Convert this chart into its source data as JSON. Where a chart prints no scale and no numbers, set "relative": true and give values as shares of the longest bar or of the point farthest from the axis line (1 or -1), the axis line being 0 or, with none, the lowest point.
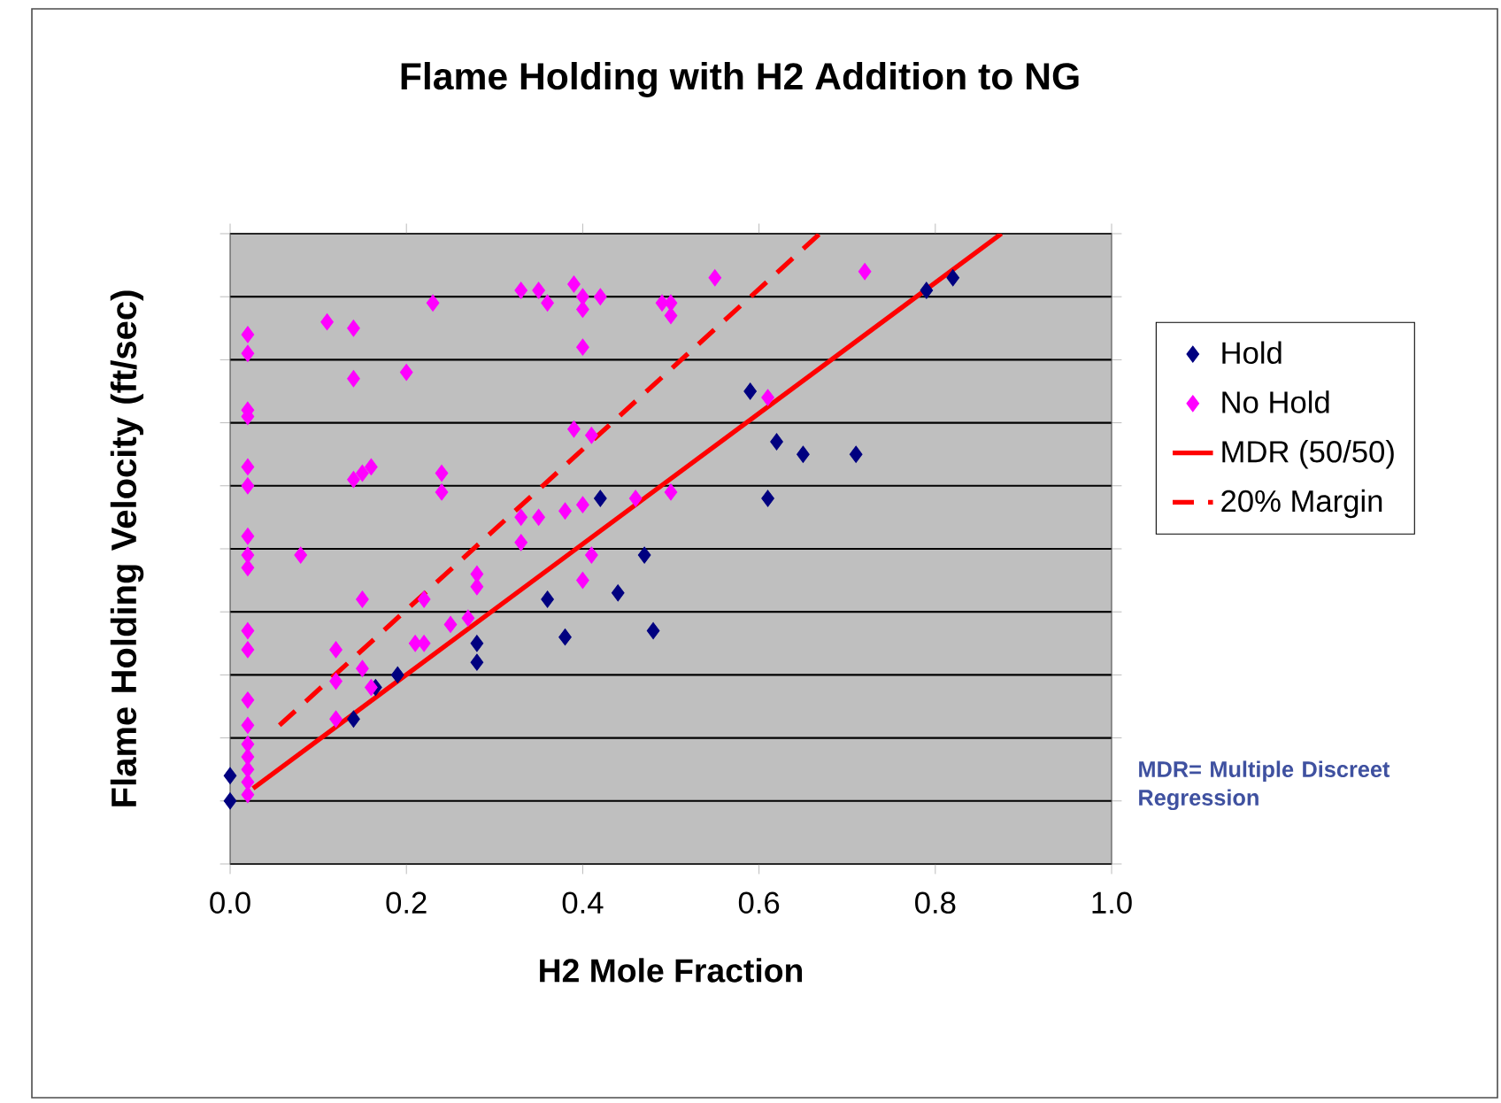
{
  "chart_data": {
    "type": "scatter",
    "title": "Flame Holding with H2 Addition to NG",
    "xlabel": "H2 Mole Fraction",
    "ylabel": "Flame Holding Velocity (ft/sec)",
    "relative": true,
    "xlim": [
      0,
      1
    ],
    "xticks": [
      {
        "value": 0,
        "label": "0.0"
      },
      {
        "value": 0.2,
        "label": "0.2"
      },
      {
        "value": 0.4,
        "label": "0.4"
      },
      {
        "value": 0.6,
        "label": "0.6"
      },
      {
        "value": 0.8,
        "label": "0.8"
      },
      {
        "value": 1,
        "label": "1.0"
      }
    ],
    "grid": "y",
    "legend": "right",
    "annotations": [
      "MDR= Multiple Discreet Regression"
    ],
    "series": [
      {
        "name": "Hold",
        "marker": "diamond",
        "color": "#000080",
        "x": [
          0,
          0,
          0.14,
          0.165,
          0.19,
          0.28,
          0.28,
          0.36,
          0.38,
          0.42,
          0.44,
          0.47,
          0.48,
          0.59,
          0.61,
          0.62,
          0.65,
          0.71,
          0.79,
          0.82
        ],
        "values": [
          0.14,
          0.1,
          0.23,
          0.28,
          0.3,
          0.35,
          0.32,
          0.42,
          0.36,
          0.58,
          0.43,
          0.49,
          0.37,
          0.75,
          0.58,
          0.67,
          0.65,
          0.65,
          0.91,
          0.93
        ]
      },
      {
        "name": "No Hold",
        "marker": "diamond",
        "color": "#ff00ff",
        "x": [
          0.02,
          0.02,
          0.02,
          0.02,
          0.02,
          0.02,
          0.02,
          0.02,
          0.02,
          0.02,
          0.02,
          0.02,
          0.02,
          0.02,
          0.02,
          0.02,
          0.02,
          0.02,
          0.08,
          0.11,
          0.14,
          0.14,
          0.14,
          0.15,
          0.16,
          0.15,
          0.12,
          0.12,
          0.12,
          0.15,
          0.16,
          0.2,
          0.23,
          0.22,
          0.21,
          0.22,
          0.25,
          0.27,
          0.24,
          0.24,
          0.28,
          0.28,
          0.33,
          0.35,
          0.36,
          0.33,
          0.33,
          0.35,
          0.38,
          0.39,
          0.4,
          0.4,
          0.42,
          0.4,
          0.39,
          0.41,
          0.4,
          0.41,
          0.4,
          0.46,
          0.49,
          0.5,
          0.5,
          0.55,
          0.61,
          0.5,
          0.72
        ],
        "values": [
          0.84,
          0.81,
          0.72,
          0.71,
          0.63,
          0.6,
          0.52,
          0.49,
          0.47,
          0.37,
          0.34,
          0.26,
          0.22,
          0.19,
          0.17,
          0.15,
          0.13,
          0.11,
          0.49,
          0.86,
          0.85,
          0.77,
          0.61,
          0.62,
          0.63,
          0.42,
          0.34,
          0.29,
          0.23,
          0.31,
          0.28,
          0.78,
          0.89,
          0.42,
          0.35,
          0.35,
          0.38,
          0.39,
          0.62,
          0.59,
          0.46,
          0.44,
          0.91,
          0.91,
          0.89,
          0.55,
          0.51,
          0.55,
          0.56,
          0.92,
          0.9,
          0.88,
          0.9,
          0.82,
          0.69,
          0.68,
          0.57,
          0.49,
          0.45,
          0.58,
          0.89,
          0.89,
          0.87,
          0.93,
          0.74,
          0.59,
          0.94
        ]
      },
      {
        "name": "MDR (50/50)",
        "type": "line",
        "color": "#ff0000",
        "marker": "none",
        "line_style": "solid",
        "x": [
          0.026,
          0.875
        ],
        "values": [
          0.12,
          1
        ]
      },
      {
        "name": "20% Margin",
        "type": "line",
        "color": "#ff0000",
        "marker": "none",
        "line_style": "dashed",
        "x": [
          0.056,
          0.669
        ],
        "values": [
          0.22,
          1
        ]
      }
    ]
  }
}
